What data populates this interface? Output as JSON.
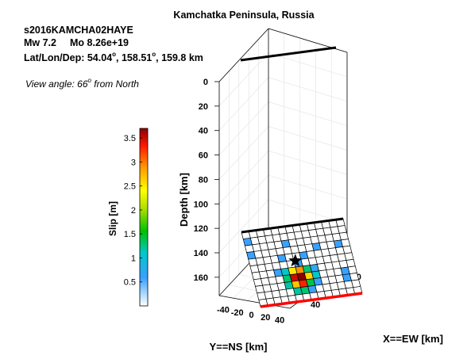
{
  "chart_data": {
    "type": "heatmap",
    "title": "Kamchatka Peninsula, Russia",
    "event_id": "s2016KAMCHA02HAYE",
    "magnitude_text": "Mw 7.2",
    "moment_text": "Mo 8.26e+19",
    "location_prefix": "Lat/Lon/Dep: ",
    "lat": "54.04",
    "lon": "158.51",
    "dep_suffix": "159.8 km",
    "degree_mark": "o",
    "view_prefix": "View angle:  ",
    "view_value": "66",
    "view_suffix": " from North",
    "zlabel": "Depth [km]",
    "xlabel": "Y==NS [km]",
    "ylabel": "X==EW [km]",
    "colorbar_label": "Slip [m]",
    "colormap": "jet",
    "zlim": [
      0,
      175
    ],
    "z_ticks": [
      0,
      20,
      40,
      60,
      80,
      100,
      120,
      140,
      160
    ],
    "ns_ticks": [
      -40,
      -20,
      0,
      20,
      40
    ],
    "ew_ticks": [
      -40,
      0,
      40
    ],
    "clim": [
      0,
      3.7
    ],
    "colorbar_ticks": [
      0.5,
      1,
      1.5,
      2,
      2.5,
      3,
      3.5
    ],
    "colorbar_tick_labels": [
      "0.5",
      "1",
      "1.5",
      "2",
      "2.5",
      "3",
      "3.5"
    ],
    "grid": "on",
    "colors": {
      "top_edge": "#000000",
      "bottom_edge": "#ff0000",
      "hypocenter": "#000000"
    },
    "slip_grid": [
      [
        0,
        0,
        0,
        0,
        0,
        0,
        0,
        0,
        0,
        0,
        0,
        0,
        0,
        0
      ],
      [
        0.6,
        0,
        0,
        0,
        0,
        0,
        0,
        0,
        0,
        0,
        0,
        0,
        0,
        0
      ],
      [
        0,
        0,
        0,
        0,
        0,
        0.6,
        0,
        0,
        0,
        0,
        0,
        0,
        0,
        0
      ],
      [
        0.6,
        0,
        0,
        0,
        0,
        0,
        0,
        0,
        0,
        0.6,
        0,
        0,
        0.6,
        0
      ],
      [
        0,
        0,
        0,
        0,
        0.6,
        0,
        0,
        0.6,
        0,
        0,
        0,
        0,
        0,
        0
      ],
      [
        0,
        0,
        0,
        0,
        0,
        0,
        0.6,
        0,
        0,
        0,
        0,
        0,
        0,
        0
      ],
      [
        0,
        0,
        0,
        0.6,
        1.1,
        2.5,
        2.9,
        1.3,
        0.7,
        0,
        0,
        0,
        0,
        0
      ],
      [
        0,
        0,
        0,
        0,
        1.3,
        3.5,
        3.7,
        2.6,
        1.1,
        0,
        0,
        0,
        0.6,
        0
      ],
      [
        0,
        0,
        0,
        0,
        1.2,
        2.7,
        3.3,
        1.4,
        0.6,
        0,
        0,
        0,
        0.6,
        0
      ],
      [
        0,
        0,
        0,
        0,
        0,
        1.2,
        1.3,
        0.6,
        0,
        0,
        0,
        0,
        0,
        0
      ],
      [
        0,
        0,
        0,
        0,
        0,
        0,
        0,
        0,
        0,
        0,
        0,
        0,
        0,
        0
      ]
    ],
    "hypocenter": {
      "row": 5,
      "col": 6
    }
  }
}
